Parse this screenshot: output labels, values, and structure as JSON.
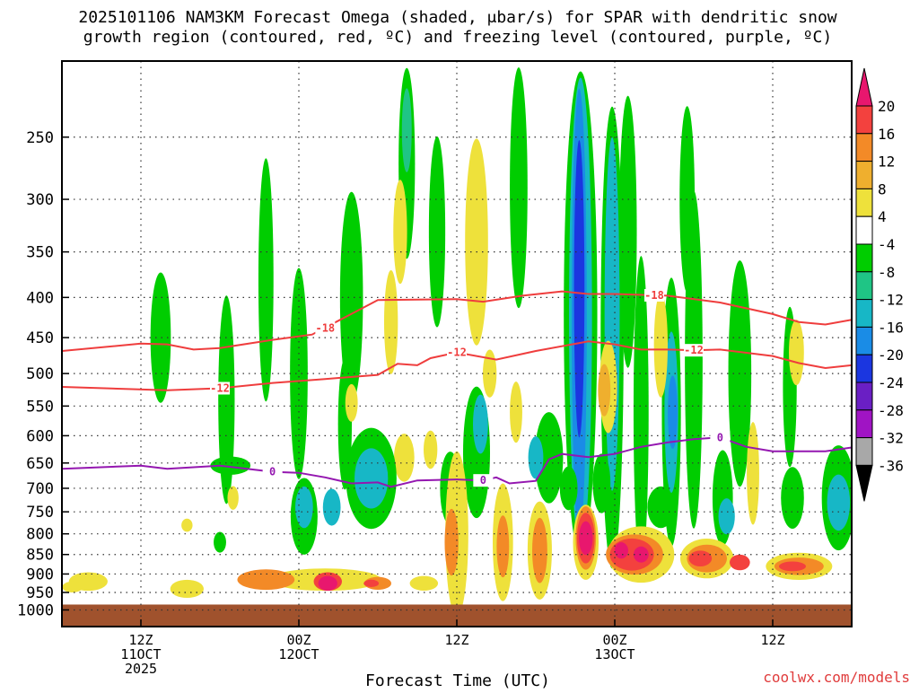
{
  "chart_data": {
    "type": "heatmap",
    "title_line1": "2025101106 NAM3KM Forecast Omega (shaded, μbar/s) for SPAR with dendritic snow",
    "title_line2": "growth region (contoured, red, ºC) and freezing level (contoured, purple, ºC)",
    "xlabel": "Forecast Time (UTC)",
    "credit": "coolwx.com/models",
    "y_axis": {
      "scale": "log",
      "range_hpa": [
        1050,
        200
      ],
      "tick_labels": [
        "250",
        "300",
        "350",
        "400",
        "450",
        "500",
        "550",
        "600",
        "650",
        "700",
        "750",
        "800",
        "850",
        "900",
        "950",
        "1000"
      ]
    },
    "x_axis": {
      "range_hours": [
        0,
        60
      ],
      "ticks": [
        {
          "hour": 6,
          "lines": [
            "12Z",
            "11OCT",
            "2025"
          ]
        },
        {
          "hour": 18,
          "lines": [
            "00Z",
            "12OCT"
          ]
        },
        {
          "hour": 30,
          "lines": [
            "12Z"
          ]
        },
        {
          "hour": 42,
          "lines": [
            "00Z",
            "13OCT"
          ]
        },
        {
          "hour": 54,
          "lines": [
            "12Z"
          ]
        }
      ]
    },
    "grid": true,
    "colorbar": {
      "levels": [
        "20",
        "16",
        "12",
        "8",
        "4",
        "-4",
        "-8",
        "-12",
        "-16",
        "-20",
        "-24",
        "-28",
        "-32",
        "-36"
      ],
      "colors": [
        "#e8176e",
        "#f3413e",
        "#f38a27",
        "#efaf2e",
        "#eee13b",
        "#ffffff",
        "#00cd00",
        "#1fc585",
        "#17b7c6",
        "#1a8ce6",
        "#1b36e0",
        "#6a1fc4",
        "#a014c4",
        "#a8a8a8",
        "#000000"
      ]
    },
    "contours": [
      {
        "name": "-18",
        "color": "#ef3d3d",
        "label_hour": 20,
        "points": [
          [
            0,
            468
          ],
          [
            6,
            458
          ],
          [
            8,
            459
          ],
          [
            10,
            466
          ],
          [
            12,
            464
          ],
          [
            16,
            453
          ],
          [
            19,
            446
          ],
          [
            24,
            403
          ],
          [
            30,
            402
          ],
          [
            32,
            405
          ],
          [
            35,
            398
          ],
          [
            38,
            393
          ],
          [
            40,
            396
          ],
          [
            42,
            396
          ],
          [
            46,
            398
          ],
          [
            50,
            406
          ],
          [
            54,
            420
          ],
          [
            56,
            430
          ],
          [
            58,
            433
          ],
          [
            60,
            427
          ]
        ]
      },
      {
        "name": "-12",
        "color": "#ef3d3d",
        "label_hour": 12,
        "points": [
          [
            0,
            520
          ],
          [
            8,
            525
          ],
          [
            12,
            522
          ],
          [
            16,
            514
          ],
          [
            20,
            508
          ],
          [
            24,
            502
          ],
          [
            25.5,
            486
          ],
          [
            27,
            488
          ],
          [
            28,
            478
          ],
          [
            30,
            470
          ],
          [
            33,
            480
          ],
          [
            36,
            468
          ],
          [
            40,
            455
          ],
          [
            42,
            459
          ],
          [
            44,
            466
          ],
          [
            46,
            466
          ],
          [
            48,
            467
          ],
          [
            50,
            466
          ],
          [
            54,
            475
          ],
          [
            56,
            485
          ],
          [
            58,
            492
          ],
          [
            60,
            488
          ]
        ]
      },
      {
        "name": "0",
        "color": "#9417b0",
        "label_hour": 16,
        "points": [
          [
            0,
            661
          ],
          [
            6,
            655
          ],
          [
            8,
            661
          ],
          [
            12,
            655
          ],
          [
            16,
            667
          ],
          [
            18,
            669
          ],
          [
            20,
            678
          ],
          [
            22,
            690
          ],
          [
            24,
            688
          ],
          [
            25,
            697
          ],
          [
            27,
            684
          ],
          [
            30,
            682
          ],
          [
            32,
            684
          ],
          [
            33,
            678
          ],
          [
            34,
            690
          ],
          [
            36,
            685
          ],
          [
            37,
            643
          ],
          [
            38,
            633
          ],
          [
            40,
            639
          ],
          [
            42,
            633
          ],
          [
            44,
            620
          ],
          [
            46,
            612
          ],
          [
            48,
            606
          ],
          [
            50,
            603
          ],
          [
            52,
            620
          ],
          [
            54,
            628
          ],
          [
            58,
            628
          ],
          [
            60,
            621
          ]
        ]
      }
    ],
    "labels_at": {
      "-18": [
        20,
        45
      ],
      "-12": [
        12,
        30,
        48
      ],
      "0": [
        16,
        32,
        50
      ]
    },
    "omega_cells": [
      {
        "h": 28.3,
        "p": 120,
        "dh": 0.9,
        "dp": 260,
        "v": 6
      },
      {
        "h": 26.2,
        "p": 270,
        "dh": 0.7,
        "dp": 160,
        "v": -6
      },
      {
        "h": 26.2,
        "p": 245,
        "dh": 0.2,
        "dp": 60,
        "v": -10
      },
      {
        "h": 25.7,
        "p": 330,
        "dh": 0.5,
        "dp": 100,
        "v": 6
      },
      {
        "h": 28.5,
        "p": 330,
        "dh": 0.7,
        "dp": 180,
        "v": -6
      },
      {
        "h": 25,
        "p": 430,
        "dh": 0.5,
        "dp": 130,
        "v": 6
      },
      {
        "h": 22,
        "p": 400,
        "dh": 1.2,
        "dp": 240,
        "v": -6
      },
      {
        "h": 15.5,
        "p": 380,
        "dh": 0.6,
        "dp": 260,
        "v": -6
      },
      {
        "h": 18,
        "p": 500,
        "dh": 0.8,
        "dp": 300,
        "v": -6
      },
      {
        "h": 7.5,
        "p": 450,
        "dh": 1,
        "dp": 170,
        "v": -6
      },
      {
        "h": 12.5,
        "p": 540,
        "dh": 0.7,
        "dp": 320,
        "v": -6
      },
      {
        "h": 21.5,
        "p": 580,
        "dh": 0.5,
        "dp": 220,
        "v": -6
      },
      {
        "h": 31.5,
        "p": 340,
        "dh": 1.2,
        "dp": 200,
        "v": 6
      },
      {
        "h": 34.7,
        "p": 290,
        "dh": 0.8,
        "dp": 230,
        "v": -6
      },
      {
        "h": 39.4,
        "p": 420,
        "dh": 2,
        "dp": 820,
        "v": -6
      },
      {
        "h": 39.4,
        "p": 420,
        "dh": 1.2,
        "dp": 760,
        "v": -12
      },
      {
        "h": 39.3,
        "p": 420,
        "dh": 0.6,
        "dp": 660,
        "v": -16
      },
      {
        "h": 39.3,
        "p": 390,
        "dh": 0.25,
        "dp": 320,
        "v": -20
      },
      {
        "h": 41.8,
        "p": 450,
        "dh": 1.2,
        "dp": 650,
        "v": -6
      },
      {
        "h": 41.8,
        "p": 420,
        "dh": 0.6,
        "dp": 400,
        "v": -12
      },
      {
        "h": 43,
        "p": 330,
        "dh": 0.8,
        "dp": 250,
        "v": -6
      },
      {
        "h": 44,
        "p": 560,
        "dh": 0.6,
        "dp": 480,
        "v": -6
      },
      {
        "h": 46.3,
        "p": 560,
        "dh": 0.9,
        "dp": 420,
        "v": -6
      },
      {
        "h": 46.3,
        "p": 560,
        "dh": 0.5,
        "dp": 260,
        "v": -12
      },
      {
        "h": 46.4,
        "p": 560,
        "dh": 0.2,
        "dp": 120,
        "v": -16
      },
      {
        "h": 48,
        "p": 480,
        "dh": 0.8,
        "dp": 440,
        "v": -6
      },
      {
        "h": 47.5,
        "p": 300,
        "dh": 0.6,
        "dp": 160,
        "v": -6
      },
      {
        "h": 45.5,
        "p": 460,
        "dh": 0.5,
        "dp": 140,
        "v": 6
      },
      {
        "h": 51.5,
        "p": 500,
        "dh": 1.2,
        "dp": 320,
        "v": -6
      },
      {
        "h": 55.3,
        "p": 520,
        "dh": 0.5,
        "dp": 240,
        "v": -6
      },
      {
        "h": 55.8,
        "p": 470,
        "dh": 0.6,
        "dp": 90,
        "v": 6
      },
      {
        "h": 52.5,
        "p": 670,
        "dh": 0.4,
        "dp": 200,
        "v": 6
      },
      {
        "h": 41.5,
        "p": 520,
        "dh": 0.8,
        "dp": 140,
        "v": 6
      },
      {
        "h": 41.2,
        "p": 525,
        "dh": 0.4,
        "dp": 80,
        "v": 10
      },
      {
        "h": 34.5,
        "p": 560,
        "dh": 0.4,
        "dp": 100,
        "v": 6
      },
      {
        "h": 37,
        "p": 640,
        "dh": 1.6,
        "dp": 170,
        "v": -6
      },
      {
        "h": 36,
        "p": 640,
        "dh": 0.6,
        "dp": 80,
        "v": -12
      },
      {
        "h": 31.5,
        "p": 630,
        "dh": 1.5,
        "dp": 240,
        "v": -6
      },
      {
        "h": 31.8,
        "p": 580,
        "dh": 0.6,
        "dp": 100,
        "v": -12
      },
      {
        "h": 26,
        "p": 640,
        "dh": 1,
        "dp": 90,
        "v": 6
      },
      {
        "h": 28,
        "p": 625,
        "dh": 0.5,
        "dp": 70,
        "v": 6
      },
      {
        "h": 23.5,
        "p": 680,
        "dh": 3.3,
        "dp": 200,
        "v": -6
      },
      {
        "h": 23.5,
        "p": 680,
        "dh": 2,
        "dp": 120,
        "v": -12
      },
      {
        "h": 18.4,
        "p": 760,
        "dh": 1.5,
        "dp": 170,
        "v": -6
      },
      {
        "h": 18.4,
        "p": 740,
        "dh": 0.8,
        "dp": 90,
        "v": -12
      },
      {
        "h": 29.5,
        "p": 700,
        "dh": 1,
        "dp": 150,
        "v": -6
      },
      {
        "h": 20.5,
        "p": 740,
        "dh": 0.8,
        "dp": 80,
        "v": -12
      },
      {
        "h": 13,
        "p": 720,
        "dh": 0.3,
        "dp": 50,
        "v": 6
      },
      {
        "h": 9.5,
        "p": 780,
        "dh": 0.3,
        "dp": 30,
        "v": 6
      },
      {
        "h": 12,
        "p": 820,
        "dh": 0.4,
        "dp": 50,
        "v": -6
      },
      {
        "h": 38.5,
        "p": 700,
        "dh": 0.8,
        "dp": 90,
        "v": -6
      },
      {
        "h": 41,
        "p": 690,
        "dh": 0.8,
        "dp": 120,
        "v": -6
      },
      {
        "h": 45.5,
        "p": 740,
        "dh": 1.5,
        "dp": 90,
        "v": -6
      },
      {
        "h": 50.2,
        "p": 720,
        "dh": 1,
        "dp": 200,
        "v": -6
      },
      {
        "h": 55.5,
        "p": 720,
        "dh": 1.2,
        "dp": 130,
        "v": -6
      },
      {
        "h": 59,
        "p": 720,
        "dh": 2,
        "dp": 220,
        "v": -6
      },
      {
        "h": 59,
        "p": 730,
        "dh": 1.2,
        "dp": 120,
        "v": -12
      },
      {
        "h": 50.5,
        "p": 760,
        "dh": 0.7,
        "dp": 80,
        "v": -12
      },
      {
        "h": 30,
        "p": 800,
        "dh": 1.2,
        "dp": 380,
        "v": 6
      },
      {
        "h": 29.6,
        "p": 820,
        "dh": 0.5,
        "dp": 160,
        "v": 12
      },
      {
        "h": 33.5,
        "p": 820,
        "dh": 1,
        "dp": 280,
        "v": 6
      },
      {
        "h": 33.5,
        "p": 830,
        "dh": 0.4,
        "dp": 150,
        "v": 12
      },
      {
        "h": 36.3,
        "p": 840,
        "dh": 1.3,
        "dp": 240,
        "v": 6
      },
      {
        "h": 36.3,
        "p": 840,
        "dh": 0.6,
        "dp": 160,
        "v": 12
      },
      {
        "h": 39.8,
        "p": 820,
        "dh": 1.4,
        "dp": 180,
        "v": 6
      },
      {
        "h": 39.8,
        "p": 810,
        "dh": 1,
        "dp": 150,
        "v": 12
      },
      {
        "h": 39.8,
        "p": 810,
        "dh": 0.8,
        "dp": 120,
        "v": 16
      },
      {
        "h": 39.8,
        "p": 810,
        "dh": 0.5,
        "dp": 80,
        "v": 20
      },
      {
        "h": 44,
        "p": 850,
        "dh": 4.5,
        "dp": 140,
        "v": 6
      },
      {
        "h": 43.5,
        "p": 850,
        "dh": 3.8,
        "dp": 100,
        "v": 12
      },
      {
        "h": 43.3,
        "p": 850,
        "dh": 2.8,
        "dp": 80,
        "v": 16
      },
      {
        "h": 42.5,
        "p": 840,
        "dh": 0.5,
        "dp": 40,
        "v": 20
      },
      {
        "h": 44,
        "p": 850,
        "dh": 0.6,
        "dp": 40,
        "v": 20
      },
      {
        "h": 49,
        "p": 860,
        "dh": 3.5,
        "dp": 100,
        "v": 6
      },
      {
        "h": 49,
        "p": 860,
        "dh": 2.5,
        "dp": 70,
        "v": 12
      },
      {
        "h": 48.5,
        "p": 860,
        "dh": 1.2,
        "dp": 40,
        "v": 16
      },
      {
        "h": 56,
        "p": 880,
        "dh": 4.5,
        "dp": 70,
        "v": 6
      },
      {
        "h": 56,
        "p": 880,
        "dh": 3.2,
        "dp": 45,
        "v": 12
      },
      {
        "h": 55.5,
        "p": 880,
        "dh": 1.5,
        "dp": 25,
        "v": 16
      },
      {
        "h": 51.5,
        "p": 870,
        "dh": 1,
        "dp": 40,
        "v": 16
      },
      {
        "h": 20,
        "p": 915,
        "dh": 8,
        "dp": 60,
        "v": 6
      },
      {
        "h": 15.5,
        "p": 915,
        "dh": 3.8,
        "dp": 55,
        "v": 12
      },
      {
        "h": 20.2,
        "p": 920,
        "dh": 1.6,
        "dp": 50,
        "v": 16
      },
      {
        "h": 20.2,
        "p": 925,
        "dh": 0.9,
        "dp": 40,
        "v": 20
      },
      {
        "h": 24,
        "p": 925,
        "dh": 1.5,
        "dp": 35,
        "v": 12
      },
      {
        "h": 23.5,
        "p": 925,
        "dh": 0.6,
        "dp": 20,
        "v": 16
      },
      {
        "h": 27.5,
        "p": 925,
        "dh": 1.6,
        "dp": 40,
        "v": 6
      },
      {
        "h": 2,
        "p": 920,
        "dh": 2.4,
        "dp": 50,
        "v": 6
      },
      {
        "h": 0.8,
        "p": 935,
        "dh": 1,
        "dp": 30,
        "v": 6
      },
      {
        "h": 9.5,
        "p": 940,
        "dh": 2,
        "dp": 50,
        "v": 6
      },
      {
        "h": 12.8,
        "p": 655,
        "dh": 2.5,
        "dp": 35,
        "v": -2
      },
      {
        "h": 22,
        "p": 545,
        "dh": 0.4,
        "dp": 60,
        "v": 6
      },
      {
        "h": 32.5,
        "p": 500,
        "dh": 0.5,
        "dp": 70,
        "v": 6
      }
    ]
  }
}
